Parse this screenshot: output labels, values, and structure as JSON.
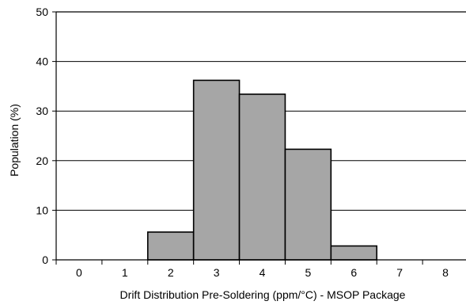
{
  "chart_data": {
    "type": "bar",
    "title": "",
    "xlabel": "Drift Distribution Pre-Soldering (ppm/°C) -  MSOP Package",
    "ylabel": "Population (%)",
    "categories": [
      "0",
      "1",
      "2",
      "3",
      "4",
      "5",
      "6",
      "7",
      "8"
    ],
    "values": [
      0,
      0,
      5.6,
      36.2,
      33.4,
      22.3,
      2.8,
      0,
      0
    ],
    "ylim": [
      0,
      50
    ],
    "yticks": [
      0,
      10,
      20,
      30,
      40,
      50
    ],
    "grid": "horizontal",
    "legend": "none",
    "bar_color": "#a6a6a6",
    "bar_edge_color": "#000000"
  }
}
